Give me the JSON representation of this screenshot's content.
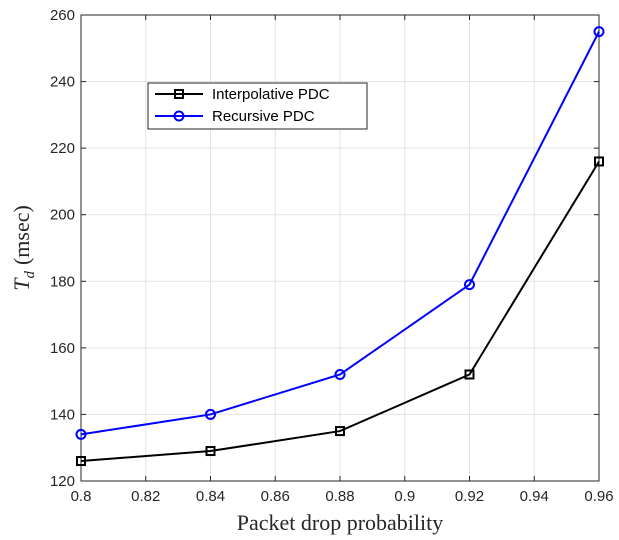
{
  "chart_data": {
    "type": "line",
    "title": "",
    "xlabel": "Packet drop probability",
    "ylabel_main": "T",
    "ylabel_sub": "d",
    "ylabel_unit": "(msec)",
    "xlim": [
      0.8,
      0.96
    ],
    "ylim": [
      120,
      260
    ],
    "xticks": [
      0.8,
      0.82,
      0.84,
      0.86,
      0.88,
      0.9,
      0.92,
      0.94,
      0.96
    ],
    "xtick_labels": [
      "0.8",
      "0.82",
      "0.84",
      "0.86",
      "0.88",
      "0.9",
      "0.92",
      "0.94",
      "0.96"
    ],
    "yticks": [
      120,
      140,
      160,
      180,
      200,
      220,
      240,
      260
    ],
    "ytick_labels": [
      "120",
      "140",
      "160",
      "180",
      "200",
      "220",
      "240",
      "260"
    ],
    "grid": true,
    "legend_position": "upper-left",
    "x": [
      0.8,
      0.84,
      0.88,
      0.92,
      0.96
    ],
    "series": [
      {
        "name": "Interpolative PDC",
        "values": [
          126,
          129,
          135,
          152,
          216
        ],
        "color": "#000000",
        "marker": "square"
      },
      {
        "name": "Recursive PDC",
        "values": [
          134,
          140,
          152,
          179,
          255
        ],
        "color": "#0000ff",
        "marker": "circle"
      }
    ]
  }
}
